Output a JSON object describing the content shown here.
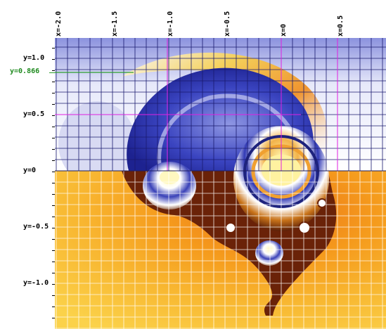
{
  "x_axis": {
    "labels": [
      "x=-2.0",
      "x=-1.5",
      "x=-1.0",
      "x=-0.5",
      "x=0",
      "x=0.5"
    ],
    "values": [
      -2.0,
      -1.5,
      -1.0,
      -0.5,
      0,
      0.5
    ]
  },
  "y_axis": {
    "labels": [
      "y=1.0",
      "y=0.866",
      "y=0.5",
      "y=0",
      "y=-0.5",
      "y=-1.0"
    ],
    "values": [
      1.0,
      0.866,
      0.5,
      0,
      -0.5,
      -1.0
    ]
  },
  "colors": {
    "highlight_label": "#1f8a1f",
    "highlight_line": "#2e9e2e",
    "guide_line": "#e020e0",
    "upper_grid": "#1a1a6e",
    "lower_grid": "#ffffff",
    "upper_fill": "#3b48c8",
    "lower_fill": "#f5a21a"
  },
  "view": {
    "x_range": [
      -2.0,
      0.9
    ],
    "y_range": [
      -1.4,
      1.1
    ]
  }
}
